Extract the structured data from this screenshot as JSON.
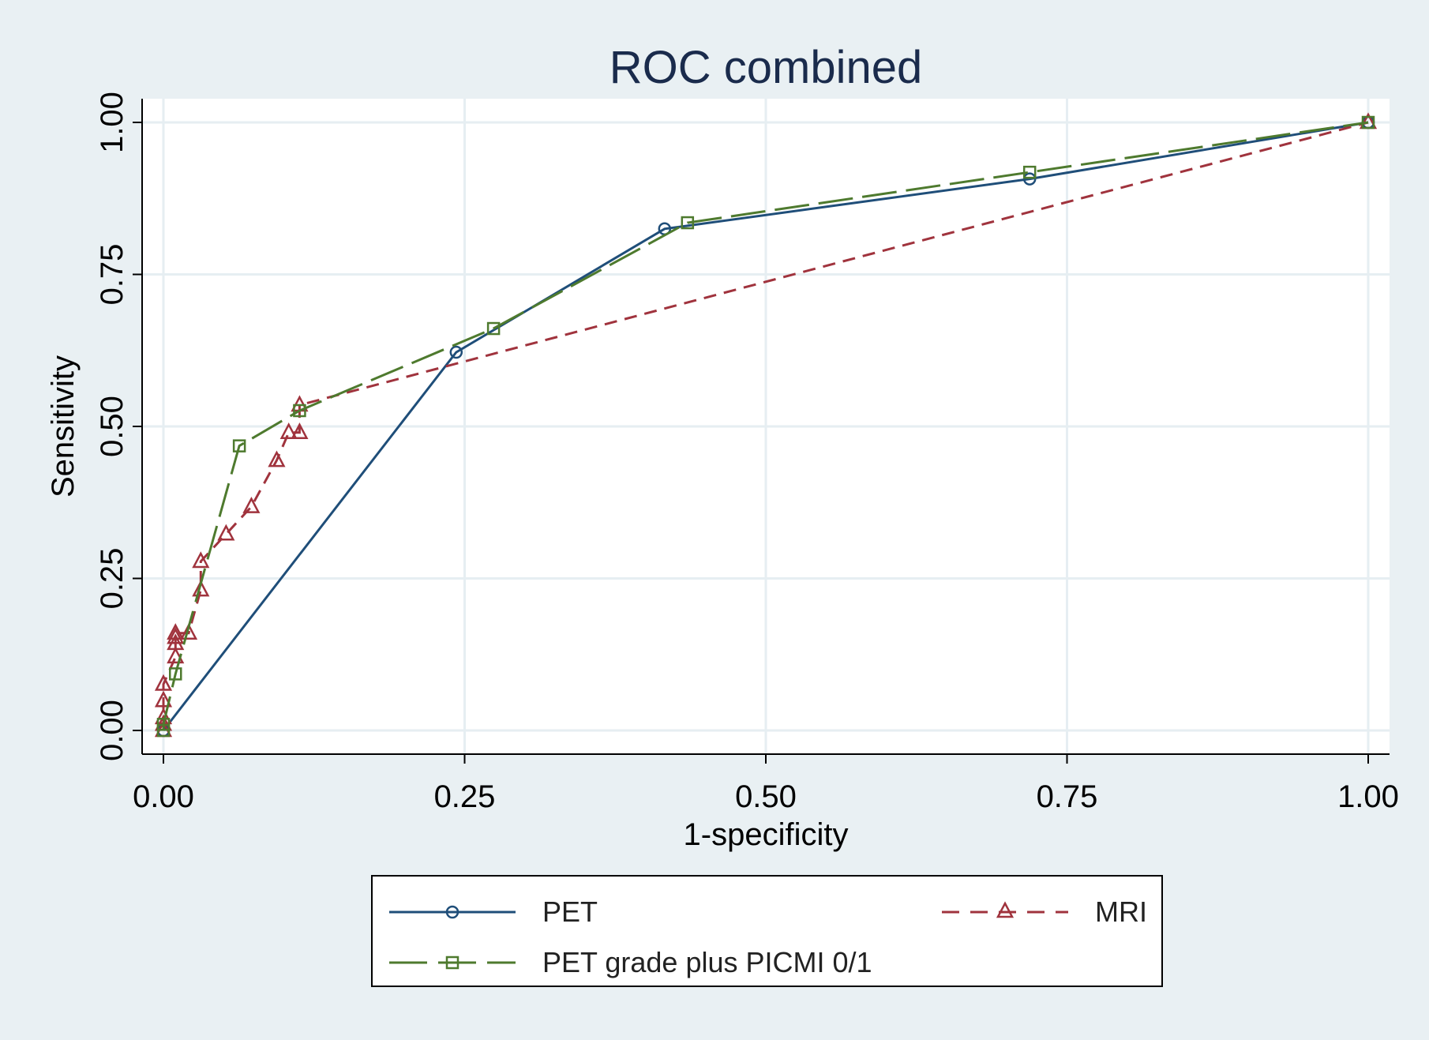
{
  "chart_data": {
    "type": "line",
    "title": "ROC combined",
    "xlabel": "1-specificity",
    "ylabel": "Sensitivity",
    "xlim": [
      0,
      1
    ],
    "ylim": [
      0,
      1
    ],
    "x_ticks": [
      "0.00",
      "0.25",
      "0.50",
      "0.75",
      "1.00"
    ],
    "y_ticks": [
      "0.00",
      "0.25",
      "0.50",
      "0.75",
      "1.00"
    ],
    "grid": true,
    "legend_position": "bottom",
    "series": [
      {
        "name": "PET",
        "color": "#1f4e79",
        "marker": "circle",
        "dash": "solid",
        "x": [
          0,
          0.243,
          0.416,
          0.719,
          1
        ],
        "y": [
          0,
          0.622,
          0.825,
          0.907,
          1
        ]
      },
      {
        "name": "MRI",
        "color": "#a0333d",
        "marker": "triangle",
        "dash": "dashed",
        "x": [
          0,
          0,
          0,
          0,
          0,
          0.01,
          0.01,
          0.01,
          0.01,
          0.021,
          0.031,
          0.031,
          0.052,
          0.073,
          0.094,
          0.104,
          0.113,
          0.113,
          1
        ],
        "y": [
          0,
          0.01,
          0.021,
          0.049,
          0.076,
          0.121,
          0.143,
          0.153,
          0.16,
          0.16,
          0.231,
          0.278,
          0.323,
          0.368,
          0.444,
          0.49,
          0.49,
          0.535,
          1
        ]
      },
      {
        "name": "PET grade plus PICMI 0/1",
        "color": "#4e7a2e",
        "marker": "square",
        "dash": "longdash",
        "x": [
          0,
          0,
          0.01,
          0.063,
          0.113,
          0.274,
          0.435,
          0.719,
          1
        ],
        "y": [
          0,
          0.01,
          0.093,
          0.468,
          0.526,
          0.661,
          0.835,
          0.918,
          1
        ]
      }
    ]
  },
  "legend": {
    "items": [
      {
        "label": "PET"
      },
      {
        "label": "MRI"
      },
      {
        "label": "PET grade plus PICMI 0/1"
      }
    ]
  }
}
